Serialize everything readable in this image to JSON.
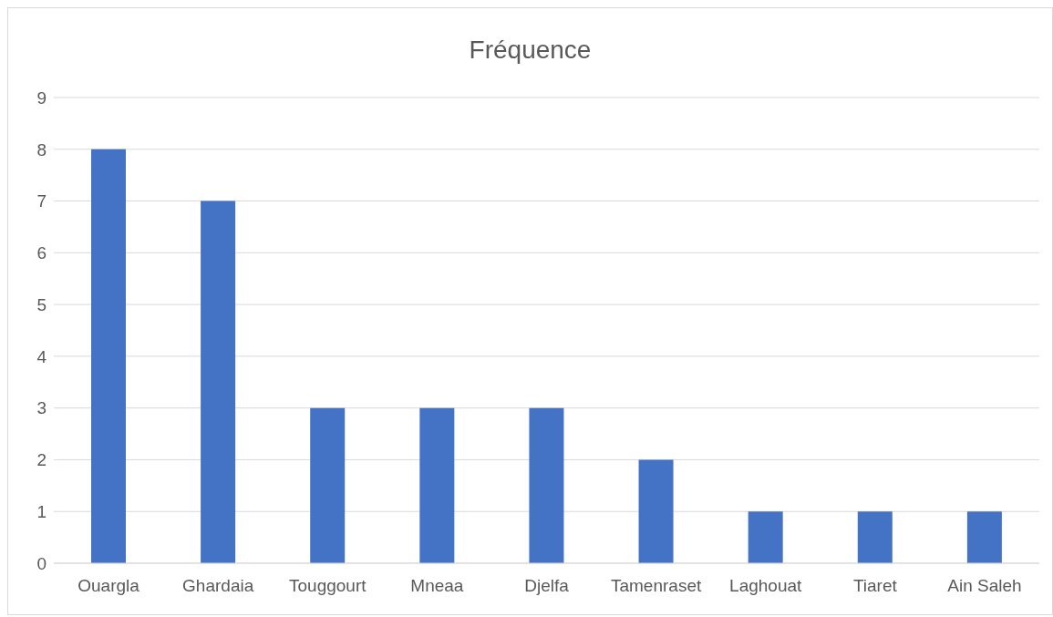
{
  "chart_data": {
    "type": "bar",
    "title": "Fréquence",
    "categories": [
      "Ouargla",
      "Ghardaia",
      "Touggourt",
      "Mneaa",
      "Djelfa",
      "Tamenraset",
      "Laghouat",
      "Tiaret",
      "Ain Saleh"
    ],
    "values": [
      8,
      7,
      3,
      3,
      3,
      2,
      1,
      1,
      1
    ],
    "color": "#4472c4",
    "ylim": [
      0,
      9
    ],
    "yticks": [
      0,
      1,
      2,
      3,
      4,
      5,
      6,
      7,
      8,
      9
    ],
    "grid": "y"
  }
}
